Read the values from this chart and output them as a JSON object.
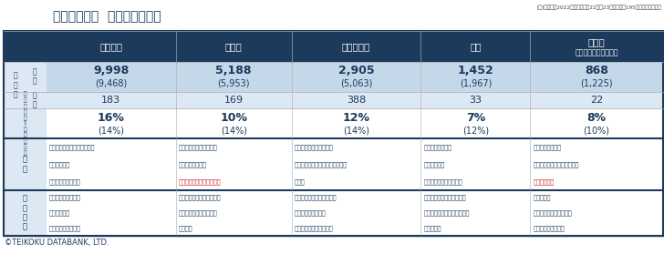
{
  "title": "主な食品分野  価格改定の動向",
  "note": "[注]（）内は2022年の実績値。22年・23年ともに計195社の値上げ品目数",
  "copyright": "©TEIKOKU DATABANK, LTD.",
  "header_bg": "#1b3a5c",
  "header_text": "#ffffff",
  "row_bg_dark": "#c5d8ea",
  "row_bg_light": "#dce8f3",
  "label_bg": "#dce8f3",
  "white": "#ffffff",
  "text_dark": "#1b3a5c",
  "red_text": "#cc1111",
  "border_color": "#1b3a5c",
  "inner_border": "#aabdd0",
  "columns": [
    "加工食品",
    "調味料",
    "酒類・飲料",
    "菓子",
    "乳製品\n（牛乳・ヨーグルト）"
  ],
  "annual_main": [
    "9,998",
    "5,188",
    "2,905",
    "1,452",
    "868"
  ],
  "annual_sub": [
    "(9,468)",
    "(5,953)",
    "(5,063)",
    "(1,967)",
    "(1,225)"
  ],
  "may_values": [
    "183",
    "169",
    "388",
    "33",
    "22"
  ],
  "rate_main": [
    "16%",
    "10%",
    "12%",
    "7%",
    "8%"
  ],
  "rate_sub": [
    "(14%)",
    "(14%)",
    "(14%)",
    "(12%)",
    "(10%)"
  ],
  "bg_texts": [
    [
      "食肉・水産品などの価格高騰",
      "物流費の上昇",
      "電気・ガス代の上昇"
    ],
    [
      "砂糖、食用油の価格高騰",
      "包装資材費の上昇",
      "鶏卵の供給不足・価格高騰"
    ],
    [
      "円安による輸入コスト増",
      "缶・ペットボトルなど包装資材費",
      "の上昇"
    ],
    [
      "食用油の価格高騰",
      "物流費の上昇",
      "エネルギーコストの上昇"
    ],
    [
      "原材料価格の上昇",
      "包装資材・運輸コストの上昇",
      "飼料価格高騰"
    ]
  ],
  "bg_red": [
    [
      false,
      false,
      false
    ],
    [
      false,
      false,
      true
    ],
    [
      false,
      false,
      false
    ],
    [
      false,
      false,
      false
    ],
    [
      false,
      false,
      true
    ]
  ],
  "prod_texts": [
    [
      "冷凍食品、水産缶詰",
      "シリアル食品",
      "チルド麺・カップ麺"
    ],
    [
      "醤油、ソース、ケチャップ",
      "みそ・しょうゆ、香辛料",
      "だし製品"
    ],
    [
      "輸入ワイン・ウィスキー類",
      "発泡酒・新ジャンル",
      "エナジードリンク・豆乳"
    ],
    [
      "米菓・アイスクリーム製品",
      "スナック・チョコレート菓子",
      "ゼリー製品"
    ],
    [
      "バック牛乳",
      "ヨーグルト・乳酸菌飲料",
      "乳幼児用粉ミルク類"
    ]
  ]
}
